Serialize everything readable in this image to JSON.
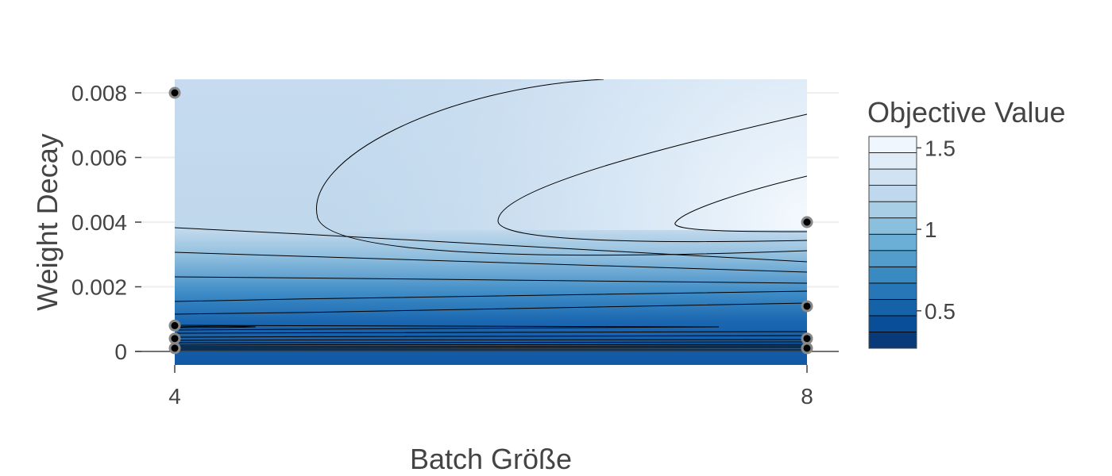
{
  "chart_data": {
    "type": "contour",
    "xlabel": "Batch Größe",
    "ylabel": "Weight Decay",
    "x_ticks": [
      4,
      8
    ],
    "x_tick_labels": [
      "4",
      "8"
    ],
    "y_ticks": [
      0,
      0.002,
      0.004,
      0.006,
      0.008
    ],
    "y_tick_labels": [
      "0",
      "0.002",
      "0.004",
      "0.006",
      "0.008"
    ],
    "xlim": [
      4,
      8
    ],
    "ylim": [
      -0.0004,
      0.0084
    ],
    "colorbar": {
      "title": "Objective Value",
      "range": [
        0.27,
        1.57
      ],
      "ticks": [
        0.5,
        1,
        1.5
      ],
      "tick_labels": [
        "0.5",
        "1",
        "1.5"
      ],
      "colorscale": "Blues"
    },
    "grid": true,
    "trials": [
      {
        "x": 4,
        "y": 0.008
      },
      {
        "x": 4,
        "y": 0.0008
      },
      {
        "x": 4,
        "y": 0.0004
      },
      {
        "x": 4,
        "y": 0.0001
      },
      {
        "x": 8,
        "y": 0.004
      },
      {
        "x": 8,
        "y": 0.0014
      },
      {
        "x": 8,
        "y": 0.0004
      },
      {
        "x": 8,
        "y": 0.0001
      }
    ],
    "colors": {
      "text": "#444444",
      "grid": "#eeeeee",
      "marker_fill": "#000000",
      "marker_edge": "#888888",
      "contour_line": "#000000"
    }
  }
}
